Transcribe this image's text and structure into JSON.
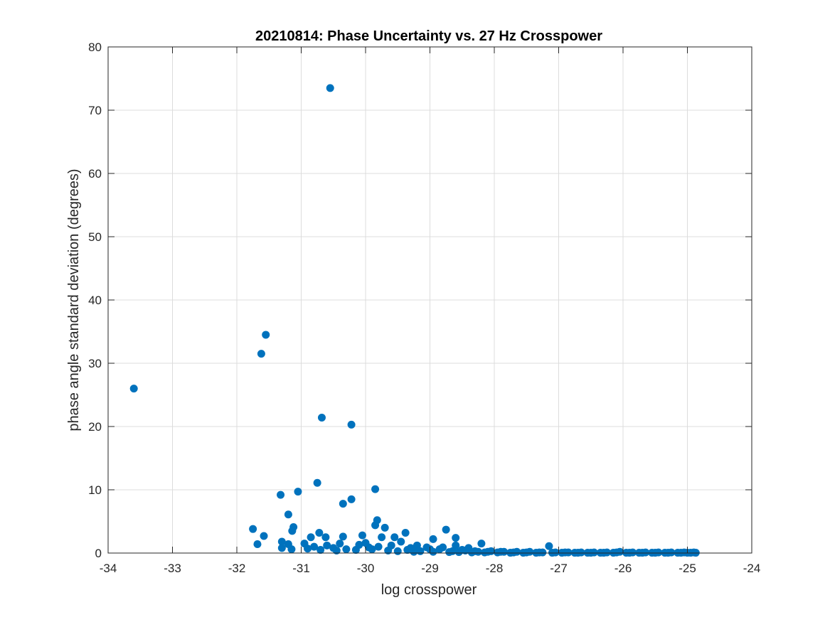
{
  "chart_data": {
    "type": "scatter",
    "title": "20210814: Phase Uncertainty vs. 27 Hz Crosspower",
    "xlabel": "log crosspower",
    "ylabel": "phase angle standard deviation (degrees)",
    "xlim": [
      -34,
      -24
    ],
    "ylim": [
      0,
      80
    ],
    "xticks": [
      -34,
      -33,
      -32,
      -31,
      -30,
      -29,
      -28,
      -27,
      -26,
      -25,
      -24
    ],
    "yticks": [
      0,
      10,
      20,
      30,
      40,
      50,
      60,
      70,
      80
    ],
    "grid": true,
    "marker_color": "#0072BD",
    "points": [
      [
        -33.6,
        26.0
      ],
      [
        -30.55,
        73.5
      ],
      [
        -31.55,
        34.5
      ],
      [
        -31.62,
        31.5
      ],
      [
        -30.68,
        21.4
      ],
      [
        -30.22,
        20.3
      ],
      [
        -30.75,
        11.1
      ],
      [
        -29.85,
        10.1
      ],
      [
        -31.05,
        9.7
      ],
      [
        -31.32,
        9.2
      ],
      [
        -30.22,
        8.5
      ],
      [
        -30.35,
        7.8
      ],
      [
        -31.2,
        6.1
      ],
      [
        -29.82,
        5.2
      ],
      [
        -29.85,
        4.4
      ],
      [
        -29.7,
        4.0
      ],
      [
        -31.12,
        4.1
      ],
      [
        -31.14,
        3.5
      ],
      [
        -31.75,
        3.8
      ],
      [
        -28.75,
        3.7
      ],
      [
        -29.38,
        3.2
      ],
      [
        -31.58,
        2.7
      ],
      [
        -30.35,
        2.6
      ],
      [
        -30.05,
        2.8
      ],
      [
        -30.72,
        3.2
      ],
      [
        -30.62,
        2.5
      ],
      [
        -31.68,
        1.4
      ],
      [
        -31.3,
        1.8
      ],
      [
        -31.2,
        1.4
      ],
      [
        -30.95,
        1.5
      ],
      [
        -30.85,
        2.5
      ],
      [
        -30.5,
        0.8
      ],
      [
        -30.3,
        0.6
      ],
      [
        -30.1,
        1.3
      ],
      [
        -29.95,
        0.9
      ],
      [
        -29.75,
        2.5
      ],
      [
        -29.55,
        2.5
      ],
      [
        -29.45,
        1.8
      ],
      [
        -29.2,
        1.2
      ],
      [
        -29.05,
        0.9
      ],
      [
        -28.95,
        2.2
      ],
      [
        -28.6,
        2.4
      ],
      [
        -28.6,
        1.2
      ],
      [
        -28.4,
        0.8
      ],
      [
        -28.2,
        1.5
      ],
      [
        -27.15,
        1.1
      ],
      [
        -31.3,
        0.8
      ],
      [
        -31.15,
        0.6
      ],
      [
        -30.9,
        0.7
      ],
      [
        -30.7,
        0.5
      ],
      [
        -30.45,
        0.4
      ],
      [
        -30.15,
        0.5
      ],
      [
        -29.9,
        0.6
      ],
      [
        -29.65,
        0.4
      ],
      [
        -29.35,
        0.5
      ],
      [
        -29.15,
        0.3
      ],
      [
        -28.85,
        0.6
      ],
      [
        -28.65,
        0.3
      ],
      [
        -28.45,
        0.4
      ],
      [
        -28.25,
        0.2
      ],
      [
        -28.05,
        0.3
      ],
      [
        -27.85,
        0.2
      ],
      [
        -27.65,
        0.2
      ],
      [
        -27.45,
        0.2
      ],
      [
        -27.25,
        0.1
      ],
      [
        -27.05,
        0.1
      ],
      [
        -26.85,
        0.1
      ],
      [
        -26.65,
        0.1
      ],
      [
        -26.45,
        0.1
      ],
      [
        -26.25,
        0.1
      ],
      [
        -26.05,
        0.2
      ],
      [
        -25.85,
        0.1
      ],
      [
        -25.65,
        0.1
      ],
      [
        -25.45,
        0.1
      ],
      [
        -25.25,
        0.1
      ],
      [
        -25.05,
        0.1
      ],
      [
        -24.9,
        0.1
      ],
      [
        -24.87,
        0.05
      ],
      [
        -30.0,
        1.6
      ],
      [
        -29.8,
        1.0
      ],
      [
        -29.6,
        1.2
      ],
      [
        -29.3,
        0.8
      ],
      [
        -29.0,
        0.6
      ],
      [
        -28.8,
        0.9
      ],
      [
        -28.5,
        0.5
      ],
      [
        -28.3,
        0.3
      ],
      [
        -28.1,
        0.2
      ],
      [
        -27.9,
        0.2
      ],
      [
        -27.7,
        0.1
      ],
      [
        -27.5,
        0.1
      ],
      [
        -27.3,
        0.1
      ],
      [
        -26.9,
        0.1
      ],
      [
        -26.7,
        0.05
      ],
      [
        -26.5,
        0.05
      ],
      [
        -26.3,
        0.05
      ],
      [
        -26.1,
        0.1
      ],
      [
        -25.9,
        0.05
      ],
      [
        -25.7,
        0.05
      ],
      [
        -25.5,
        0.05
      ],
      [
        -25.3,
        0.05
      ],
      [
        -25.1,
        0.05
      ],
      [
        -24.95,
        0.05
      ],
      [
        -30.4,
        1.5
      ],
      [
        -30.6,
        1.2
      ],
      [
        -30.8,
        1.0
      ],
      [
        -29.5,
        0.3
      ],
      [
        -29.25,
        0.2
      ],
      [
        -28.95,
        0.2
      ],
      [
        -28.7,
        0.15
      ],
      [
        -28.55,
        0.15
      ],
      [
        -28.35,
        0.1
      ],
      [
        -28.15,
        0.1
      ],
      [
        -27.95,
        0.1
      ],
      [
        -27.75,
        0.05
      ],
      [
        -27.55,
        0.05
      ],
      [
        -27.35,
        0.05
      ],
      [
        -27.1,
        0.05
      ],
      [
        -26.95,
        0.05
      ],
      [
        -26.75,
        0.05
      ],
      [
        -26.55,
        0.05
      ],
      [
        -26.35,
        0.05
      ],
      [
        -26.15,
        0.05
      ],
      [
        -25.95,
        0.05
      ],
      [
        -25.75,
        0.05
      ],
      [
        -25.55,
        0.05
      ],
      [
        -25.35,
        0.05
      ],
      [
        -25.15,
        0.05
      ],
      [
        -25.0,
        0.05
      ]
    ]
  }
}
